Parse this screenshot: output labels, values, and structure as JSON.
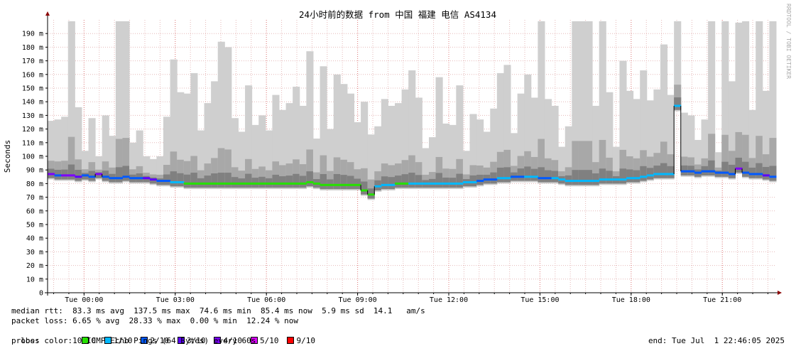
{
  "chart_data": {
    "type": "area",
    "title": "24小时前的数据 from 中国 福建 电信 AS4134",
    "ylabel": "Seconds",
    "y_ticks": [
      "0",
      "10 m",
      "20 m",
      "30 m",
      "40 m",
      "50 m",
      "60 m",
      "70 m",
      "80 m",
      "90 m",
      "100 m",
      "110 m",
      "120 m",
      "130 m",
      "140 m",
      "150 m",
      "160 m",
      "170 m",
      "180 m",
      "190 m"
    ],
    "y_tick_values": [
      0,
      10,
      20,
      30,
      40,
      50,
      60,
      70,
      80,
      90,
      100,
      110,
      120,
      130,
      140,
      150,
      160,
      170,
      180,
      190
    ],
    "ylim": [
      0,
      200
    ],
    "x_ticks": [
      {
        "label": "Tue 00:00",
        "hour": 0
      },
      {
        "label": "Tue 03:00",
        "hour": 3
      },
      {
        "label": "Tue 06:00",
        "hour": 6
      },
      {
        "label": "Tue 09:00",
        "hour": 9
      },
      {
        "label": "Tue 12:00",
        "hour": 12
      },
      {
        "label": "Tue 15:00",
        "hour": 15
      },
      {
        "label": "Tue 18:00",
        "hour": 18
      },
      {
        "label": "Tue 21:00",
        "hour": 21
      }
    ],
    "xlim_hours": [
      -1.2,
      22.77
    ],
    "grid": true,
    "side_label": "RRDTOOL / TOBI OETIKER",
    "median_rtt_ms": [
      87,
      86,
      86,
      86,
      85,
      86,
      85,
      87,
      85,
      84,
      84,
      85,
      84,
      84,
      84,
      83,
      82,
      82,
      81,
      81,
      80,
      80,
      80,
      80,
      80,
      80,
      80,
      80,
      80,
      80,
      80,
      80,
      80,
      80,
      80,
      80,
      80,
      80,
      81,
      80,
      79,
      79,
      79,
      79,
      79,
      79,
      75,
      72,
      78,
      79,
      79,
      80,
      80,
      80,
      80,
      80,
      80,
      80,
      80,
      80,
      80,
      81,
      81,
      82,
      83,
      83,
      84,
      84,
      85,
      85,
      85,
      85,
      84,
      84,
      84,
      83,
      82,
      82,
      82,
      82,
      82,
      83,
      83,
      83,
      83,
      84,
      84,
      85,
      86,
      87,
      87,
      87,
      137,
      89,
      89,
      88,
      89,
      89,
      88,
      88,
      87,
      91,
      88,
      87,
      87,
      86,
      85
    ],
    "max_rtt_ms": [
      126,
      127,
      129,
      199,
      136,
      104,
      128,
      100,
      130,
      115,
      199,
      199,
      110,
      119,
      100,
      98,
      100,
      129,
      171,
      147,
      146,
      161,
      119,
      139,
      155,
      184,
      180,
      128,
      118,
      152,
      123,
      130,
      119,
      145,
      134,
      139,
      151,
      137,
      177,
      113,
      166,
      120,
      160,
      153,
      146,
      125,
      140,
      116,
      122,
      142,
      137,
      139,
      149,
      163,
      143,
      106,
      114,
      158,
      124,
      123,
      152,
      104,
      131,
      127,
      118,
      135,
      161,
      167,
      117,
      146,
      160,
      143,
      199,
      142,
      137,
      107,
      122,
      199,
      199,
      199,
      137,
      199,
      147,
      107,
      170,
      148,
      142,
      163,
      141,
      149,
      182,
      145,
      199,
      132,
      130,
      112,
      127,
      199,
      103,
      199,
      155,
      198,
      199,
      134,
      199,
      148,
      199
    ],
    "loss_colors": [
      {
        "label": "0",
        "color": "#26e000"
      },
      {
        "label": "1/10",
        "color": "#00b8ff"
      },
      {
        "label": "2/10",
        "color": "#0059ff"
      },
      {
        "label": "3/10",
        "color": "#5e00ff"
      },
      {
        "label": "4/10",
        "color": "#7e00ff"
      },
      {
        "label": "5/10",
        "color": "#dd00ff"
      },
      {
        "label": "9/10",
        "color": "#ff0000"
      }
    ],
    "loss_series": [
      4,
      2,
      4,
      4,
      3,
      2,
      2,
      4,
      2,
      2,
      2,
      2,
      2,
      2,
      3,
      3,
      2,
      2,
      1,
      1,
      0,
      0,
      0,
      0,
      0,
      0,
      0,
      0,
      0,
      0,
      0,
      0,
      0,
      0,
      0,
      0,
      0,
      0,
      0,
      0,
      0,
      0,
      0,
      0,
      0,
      0,
      0,
      0,
      1,
      1,
      1,
      0,
      0,
      1,
      1,
      1,
      1,
      1,
      1,
      1,
      1,
      1,
      1,
      2,
      2,
      2,
      1,
      1,
      2,
      2,
      1,
      1,
      2,
      2,
      1,
      1,
      1,
      1,
      1,
      1,
      1,
      1,
      1,
      1,
      1,
      1,
      1,
      1,
      1,
      1,
      1,
      1,
      1,
      2,
      2,
      2,
      2,
      2,
      2,
      2,
      2,
      4,
      2,
      2,
      2,
      3,
      2
    ]
  },
  "stats": {
    "median_rtt": "median rtt:  83.3 ms avg  137.5 ms max  74.6 ms min  85.4 ms now  5.9 ms sd  14.1   am/s",
    "packet_loss": "packet loss: 6.65 % avg  28.33 % max  0.00 % min  12.24 % now",
    "loss_color_label": "loss color:",
    "probe": "probe:       10 ICMP Echo Pings (64 Bytes) every 60s",
    "end": "end: Tue Jul  1 22:46:05 2025"
  },
  "colors": {
    "background": "#ffffff",
    "grid": "#e5b8b8",
    "axis": "#000000",
    "arrow": "#8b0000",
    "smoke_light": "#cfcfcf",
    "smoke_mid": "#a8a8a8",
    "smoke_dark": "#808080"
  }
}
